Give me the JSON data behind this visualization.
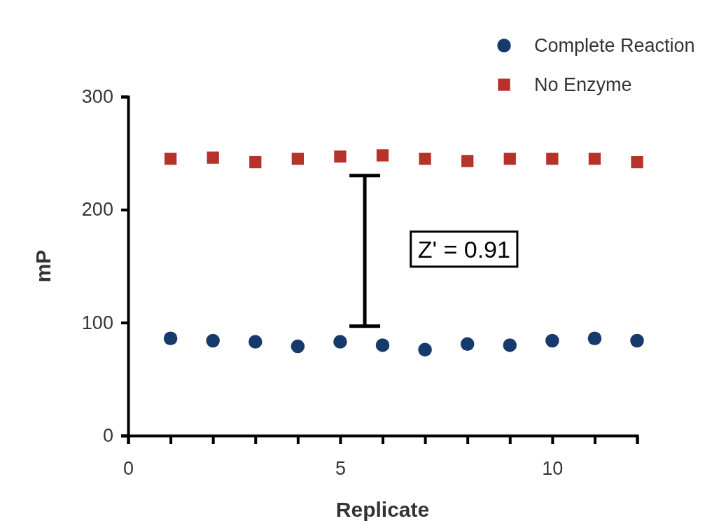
{
  "chart_data": {
    "type": "scatter",
    "xlabel": "Replicate",
    "ylabel": "mP",
    "x": [
      1,
      2,
      3,
      4,
      5,
      6,
      7,
      8,
      9,
      10,
      11,
      12
    ],
    "series": [
      {
        "name": "Complete Reaction",
        "color": "#163a6b",
        "marker": "circle",
        "values": [
          86,
          84,
          83,
          79,
          83,
          80,
          76,
          81,
          80,
          84,
          86,
          84
        ]
      },
      {
        "name": "No Enzyme",
        "color": "#b5332b",
        "marker": "square",
        "values": [
          245,
          246,
          242,
          245,
          247,
          248,
          245,
          243,
          245,
          245,
          245,
          242
        ]
      }
    ],
    "xlim": [
      0,
      12
    ],
    "ylim": [
      0,
      300
    ],
    "xticks": [
      0,
      {
        "value": 1,
        "label": null
      },
      {
        "value": 2,
        "label": null
      },
      {
        "value": 3,
        "label": null
      },
      {
        "value": 4,
        "label": null
      },
      5,
      {
        "value": 6,
        "label": null
      },
      {
        "value": 7,
        "label": null
      },
      {
        "value": 8,
        "label": null
      },
      {
        "value": 9,
        "label": null
      },
      10,
      {
        "value": 11,
        "label": null
      },
      {
        "value": 12,
        "label": null
      }
    ],
    "yticks": [
      0,
      100,
      200,
      300
    ],
    "annotations": [
      "Z' = 0.91"
    ],
    "legend": "top right",
    "grid": false
  }
}
